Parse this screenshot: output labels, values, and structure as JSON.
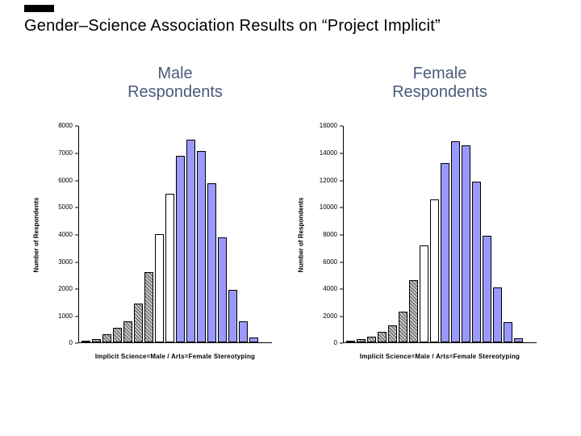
{
  "slide": {
    "title": "Gender–Science Association Results on “Project Implicit”"
  },
  "colors": {
    "slide_title_text": "#000000",
    "chart_title_text": "#4a5a7a",
    "bar_blue": "#9999ff",
    "bar_white": "#ffffff",
    "bar_hatch_dark": "#5a5a5a",
    "bar_hatch_light": "#c8c8c8",
    "bar_border": "#000000",
    "axis_line": "#000000"
  },
  "chart_data": [
    {
      "type": "bar",
      "title": "Male Respondents",
      "title_lines": [
        "Male",
        "Respondents"
      ],
      "ylabel": "Number of Respondents",
      "xlabel": "Implicit Science=Male / Arts=Female Stereotyping",
      "ylim": [
        0,
        8000
      ],
      "yticks": [
        0,
        1000,
        2000,
        3000,
        4000,
        5000,
        6000,
        7000,
        8000
      ],
      "grid": false,
      "legend_position": "none",
      "values": [
        50,
        120,
        300,
        550,
        800,
        1450,
        2600,
        4000,
        5500,
        6900,
        7500,
        7100,
        5900,
        3900,
        1950,
        800,
        200
      ],
      "fills": [
        "hatch",
        "hatch",
        "hatch",
        "hatch",
        "hatch",
        "hatch",
        "hatch",
        "white",
        "white",
        "blue",
        "blue",
        "blue",
        "blue",
        "blue",
        "blue",
        "blue",
        "blue"
      ]
    },
    {
      "type": "bar",
      "title": "Female Respondents",
      "title_lines": [
        "Female",
        "Respondents"
      ],
      "ylabel": "Number of Respondents",
      "xlabel": "Implicit Science=Male / Arts=Female Stereotyping",
      "ylim": [
        0,
        16000
      ],
      "yticks": [
        0,
        2000,
        4000,
        6000,
        8000,
        10000,
        12000,
        14000,
        16000
      ],
      "grid": false,
      "legend_position": "none",
      "values": [
        100,
        250,
        450,
        800,
        1300,
        2300,
        4600,
        7200,
        10600,
        13300,
        14900,
        14600,
        11900,
        7900,
        4100,
        1500,
        300
      ],
      "fills": [
        "hatch",
        "hatch",
        "hatch",
        "hatch",
        "hatch",
        "hatch",
        "hatch",
        "white",
        "white",
        "blue",
        "blue",
        "blue",
        "blue",
        "blue",
        "blue",
        "blue",
        "blue"
      ]
    }
  ]
}
